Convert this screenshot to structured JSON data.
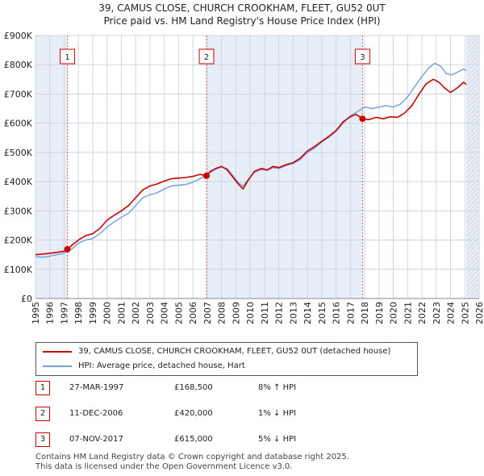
{
  "title_line1": "39, CAMUS CLOSE, CHURCH CROOKHAM, FLEET, GU52 0UT",
  "title_line2": "Price paid vs. HM Land Registry's House Price Index (HPI)",
  "colors": {
    "property": "#cc0000",
    "hpi": "#6f9fd8",
    "shade": "#e8eef8",
    "grid": "#cfd5e0"
  },
  "legend": {
    "property": "39, CAMUS CLOSE, CHURCH CROOKHAM, FLEET, GU52 0UT (detached house)",
    "hpi": "HPI: Average price, detached house, Hart"
  },
  "sales": [
    {
      "num": "1",
      "date": "27-MAR-1997",
      "price": "£168,500",
      "hpi": "8% ↑ HPI"
    },
    {
      "num": "2",
      "date": "11-DEC-2006",
      "price": "£420,000",
      "hpi": "1% ↓ HPI"
    },
    {
      "num": "3",
      "date": "07-NOV-2017",
      "price": "£615,000",
      "hpi": "5% ↓ HPI"
    }
  ],
  "footer_line1": "Contains HM Land Registry data © Crown copyright and database right 2025.",
  "footer_line2": "This data is licensed under the Open Government Licence v3.0.",
  "chart_data": {
    "type": "line",
    "xlim": [
      1995,
      2026
    ],
    "ylim": [
      0,
      900000
    ],
    "x_ticks": [
      "1995",
      "1996",
      "1997",
      "1998",
      "1999",
      "2000",
      "2001",
      "2002",
      "2003",
      "2004",
      "2005",
      "2006",
      "2007",
      "2008",
      "2009",
      "2010",
      "2011",
      "2012",
      "2013",
      "2014",
      "2015",
      "2016",
      "2017",
      "2018",
      "2019",
      "2020",
      "2021",
      "2022",
      "2023",
      "2024",
      "2025",
      "2026"
    ],
    "y_ticks": [
      {
        "value": 0,
        "label": "£0"
      },
      {
        "value": 100000,
        "label": "£100K"
      },
      {
        "value": 200000,
        "label": "£200K"
      },
      {
        "value": 300000,
        "label": "£300K"
      },
      {
        "value": 400000,
        "label": "£400K"
      },
      {
        "value": 500000,
        "label": "£500K"
      },
      {
        "value": 600000,
        "label": "£600K"
      },
      {
        "value": 700000,
        "label": "£700K"
      },
      {
        "value": 800000,
        "label": "£800K"
      },
      {
        "value": 900000,
        "label": "£900K"
      }
    ],
    "shaded_ranges": [
      [
        1995,
        1997.23
      ],
      [
        2006.95,
        2017.85
      ],
      [
        2025.1,
        2026
      ]
    ],
    "hatched_from": 2025.1,
    "sale_markers": [
      {
        "label": "1",
        "x": 1997.23,
        "y": 168500
      },
      {
        "label": "2",
        "x": 2006.95,
        "y": 420000
      },
      {
        "label": "3",
        "x": 2017.85,
        "y": 615000
      }
    ],
    "series": [
      {
        "name": "39, CAMUS CLOSE, CHURCH CROOKHAM, FLEET, GU52 0UT (detached house)",
        "points": [
          [
            1995,
            150000
          ],
          [
            1995.5,
            152000
          ],
          [
            1996,
            155000
          ],
          [
            1996.5,
            158000
          ],
          [
            1997,
            162000
          ],
          [
            1997.23,
            168500
          ],
          [
            1997.6,
            185000
          ],
          [
            1998,
            200000
          ],
          [
            1998.5,
            215000
          ],
          [
            1999,
            222000
          ],
          [
            1999.5,
            240000
          ],
          [
            2000,
            268000
          ],
          [
            2000.5,
            285000
          ],
          [
            2001,
            300000
          ],
          [
            2001.5,
            318000
          ],
          [
            2002,
            345000
          ],
          [
            2002.5,
            372000
          ],
          [
            2003,
            385000
          ],
          [
            2003.5,
            392000
          ],
          [
            2004,
            402000
          ],
          [
            2004.5,
            410000
          ],
          [
            2005,
            412000
          ],
          [
            2005.5,
            414000
          ],
          [
            2006,
            418000
          ],
          [
            2006.5,
            425000
          ],
          [
            2006.95,
            420000
          ],
          [
            2007.2,
            435000
          ],
          [
            2007.6,
            445000
          ],
          [
            2008,
            452000
          ],
          [
            2008.4,
            440000
          ],
          [
            2008.8,
            415000
          ],
          [
            2009.2,
            390000
          ],
          [
            2009.5,
            375000
          ],
          [
            2009.9,
            408000
          ],
          [
            2010.3,
            435000
          ],
          [
            2010.8,
            445000
          ],
          [
            2011.2,
            440000
          ],
          [
            2011.6,
            452000
          ],
          [
            2012,
            448000
          ],
          [
            2012.5,
            458000
          ],
          [
            2013,
            465000
          ],
          [
            2013.5,
            480000
          ],
          [
            2014,
            505000
          ],
          [
            2014.5,
            520000
          ],
          [
            2015,
            538000
          ],
          [
            2015.5,
            555000
          ],
          [
            2016,
            575000
          ],
          [
            2016.5,
            605000
          ],
          [
            2017,
            622000
          ],
          [
            2017.4,
            630000
          ],
          [
            2017.85,
            615000
          ],
          [
            2018.3,
            612000
          ],
          [
            2018.8,
            620000
          ],
          [
            2019.3,
            615000
          ],
          [
            2019.8,
            622000
          ],
          [
            2020.3,
            620000
          ],
          [
            2020.8,
            635000
          ],
          [
            2021.3,
            660000
          ],
          [
            2021.8,
            700000
          ],
          [
            2022.3,
            735000
          ],
          [
            2022.8,
            750000
          ],
          [
            2023.2,
            740000
          ],
          [
            2023.6,
            720000
          ],
          [
            2024,
            705000
          ],
          [
            2024.5,
            722000
          ],
          [
            2024.9,
            740000
          ],
          [
            2025.1,
            733000
          ]
        ]
      },
      {
        "name": "HPI: Average price, detached house, Hart",
        "points": [
          [
            1995,
            143000
          ],
          [
            1995.5,
            141000
          ],
          [
            1996,
            145000
          ],
          [
            1996.5,
            150000
          ],
          [
            1997,
            155000
          ],
          [
            1997.5,
            168000
          ],
          [
            1998,
            190000
          ],
          [
            1998.5,
            200000
          ],
          [
            1999,
            205000
          ],
          [
            1999.5,
            222000
          ],
          [
            2000,
            245000
          ],
          [
            2000.5,
            262000
          ],
          [
            2001,
            278000
          ],
          [
            2001.5,
            292000
          ],
          [
            2002,
            318000
          ],
          [
            2002.5,
            345000
          ],
          [
            2003,
            355000
          ],
          [
            2003.5,
            362000
          ],
          [
            2004,
            375000
          ],
          [
            2004.5,
            385000
          ],
          [
            2005,
            388000
          ],
          [
            2005.5,
            390000
          ],
          [
            2006,
            398000
          ],
          [
            2006.5,
            410000
          ],
          [
            2007,
            425000
          ],
          [
            2007.5,
            440000
          ],
          [
            2008,
            450000
          ],
          [
            2008.4,
            445000
          ],
          [
            2008.8,
            420000
          ],
          [
            2009.2,
            395000
          ],
          [
            2009.5,
            385000
          ],
          [
            2009.9,
            410000
          ],
          [
            2010.3,
            432000
          ],
          [
            2010.8,
            442000
          ],
          [
            2011.2,
            438000
          ],
          [
            2011.6,
            448000
          ],
          [
            2012,
            445000
          ],
          [
            2012.5,
            455000
          ],
          [
            2013,
            462000
          ],
          [
            2013.5,
            475000
          ],
          [
            2014,
            500000
          ],
          [
            2014.5,
            515000
          ],
          [
            2015,
            535000
          ],
          [
            2015.5,
            552000
          ],
          [
            2016,
            572000
          ],
          [
            2016.5,
            600000
          ],
          [
            2017,
            625000
          ],
          [
            2017.5,
            640000
          ],
          [
            2018,
            655000
          ],
          [
            2018.5,
            650000
          ],
          [
            2019,
            655000
          ],
          [
            2019.5,
            660000
          ],
          [
            2020,
            655000
          ],
          [
            2020.5,
            665000
          ],
          [
            2021,
            690000
          ],
          [
            2021.5,
            725000
          ],
          [
            2022,
            760000
          ],
          [
            2022.5,
            790000
          ],
          [
            2022.9,
            805000
          ],
          [
            2023.3,
            795000
          ],
          [
            2023.7,
            770000
          ],
          [
            2024.1,
            765000
          ],
          [
            2024.5,
            775000
          ],
          [
            2024.9,
            785000
          ],
          [
            2025.1,
            780000
          ]
        ]
      }
    ]
  }
}
